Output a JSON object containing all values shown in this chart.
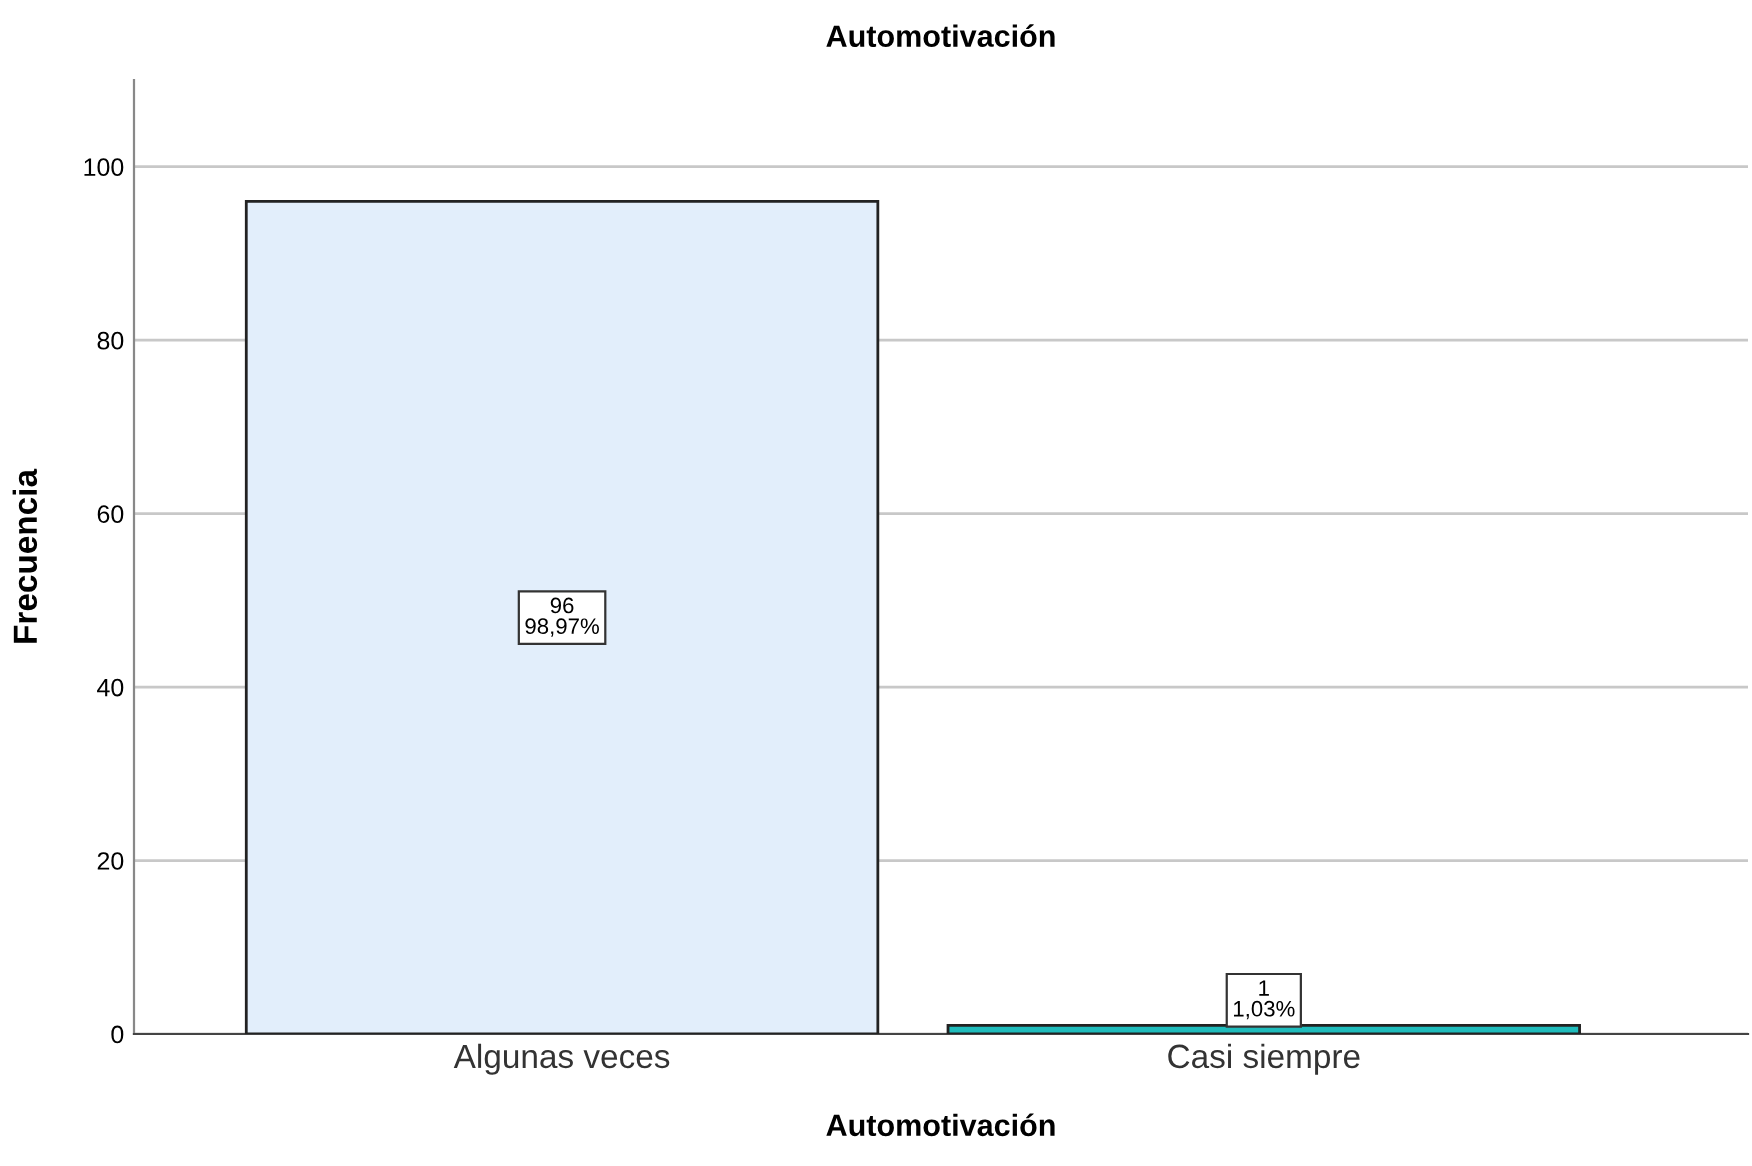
{
  "chart_data": {
    "type": "bar",
    "title": "Automotivación",
    "xlabel": "Automotivación",
    "ylabel": "Frecuencia",
    "categories": [
      "Algunas veces",
      "Casi siempre"
    ],
    "values": [
      96,
      1
    ],
    "colors": [
      "#e2eefb",
      "#1fbcbc"
    ],
    "value_labels": [
      "96\n98,97%",
      "1\n1,03%"
    ],
    "ylim": [
      0,
      110
    ],
    "yticks": [
      0,
      20,
      40,
      60,
      80,
      100
    ],
    "grid": "y"
  }
}
